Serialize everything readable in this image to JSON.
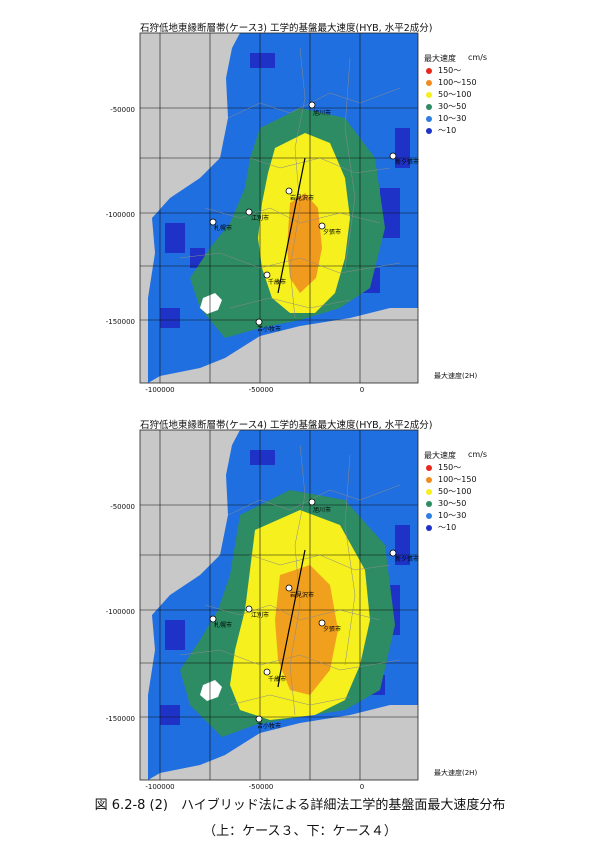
{
  "panels": [
    {
      "title": "石狩低地東縁断層帯(ケース3)  工学的基盤最大速度(HYB, 水平2成分)",
      "y_ticks": [
        "-50000",
        "-100000",
        "-150000"
      ],
      "x_ticks": [
        "-100000",
        "-50000",
        "0"
      ],
      "corner_label": "最大速度(2H)",
      "legend": {
        "title": "最大速度",
        "unit": "cm/s",
        "items": [
          {
            "label": "150〜",
            "color": "#e8281e"
          },
          {
            "label": "100〜150",
            "color": "#f08c1e"
          },
          {
            "label": "50〜100",
            "color": "#f5f01e"
          },
          {
            "label": "30〜50",
            "color": "#2d8c64"
          },
          {
            "label": "10〜30",
            "color": "#2e7de1"
          },
          {
            "label": "〜10",
            "color": "#1e32c8"
          }
        ]
      },
      "cities": [
        "旭川市",
        "新夕張市",
        "岩見沢市",
        "江別市",
        "夕張市",
        "札幌市",
        "千歳市",
        "苫小牧市"
      ]
    },
    {
      "title": "石狩低地東縁断層帯(ケース4)  工学的基盤最大速度(HYB, 水平2成分)",
      "y_ticks": [
        "-50000",
        "-100000",
        "-150000"
      ],
      "x_ticks": [
        "-100000",
        "-50000",
        "0"
      ],
      "corner_label": "最大速度(2H)",
      "legend": {
        "title": "最大速度",
        "unit": "cm/s",
        "items": [
          {
            "label": "150〜",
            "color": "#e8281e"
          },
          {
            "label": "100〜150",
            "color": "#f08c1e"
          },
          {
            "label": "50〜100",
            "color": "#f5f01e"
          },
          {
            "label": "30〜50",
            "color": "#2d8c64"
          },
          {
            "label": "10〜30",
            "color": "#2e7de1"
          },
          {
            "label": "〜10",
            "color": "#1e32c8"
          }
        ]
      },
      "cities": [
        "旭川市",
        "新夕張市",
        "岩見沢市",
        "江別市",
        "夕張市",
        "札幌市",
        "千歳市",
        "苫小牧市"
      ]
    }
  ],
  "caption": {
    "line1": "図 6.2-8 (2)　ハイブリッド法による詳細法工学的基盤面最大速度分布",
    "line2": "（上：ケース３、下：ケース４）"
  }
}
